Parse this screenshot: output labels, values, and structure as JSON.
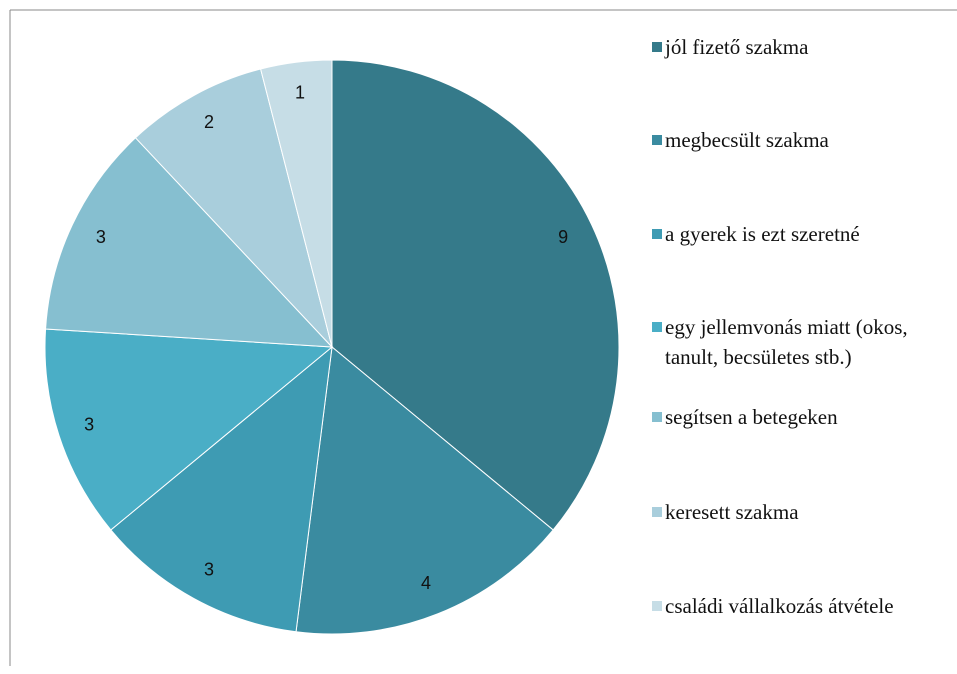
{
  "chart_data": {
    "type": "pie",
    "categories": [
      "jól fizető szakma",
      "megbecsült szakma",
      "a gyerek is ezt szeretné",
      "egy jellemvonás miatt (okos, tanult, becsületes stb.)",
      "segítsen a betegeken",
      "keresett szakma",
      "családi vállalkozás átvétele"
    ],
    "values": [
      9,
      4,
      3,
      3,
      3,
      2,
      1
    ],
    "colors": [
      "#357a8a",
      "#3a8ba0",
      "#3e9bb3",
      "#4aaec6",
      "#86bfd0",
      "#a9cedc",
      "#c6dde6"
    ],
    "legend": "right"
  }
}
